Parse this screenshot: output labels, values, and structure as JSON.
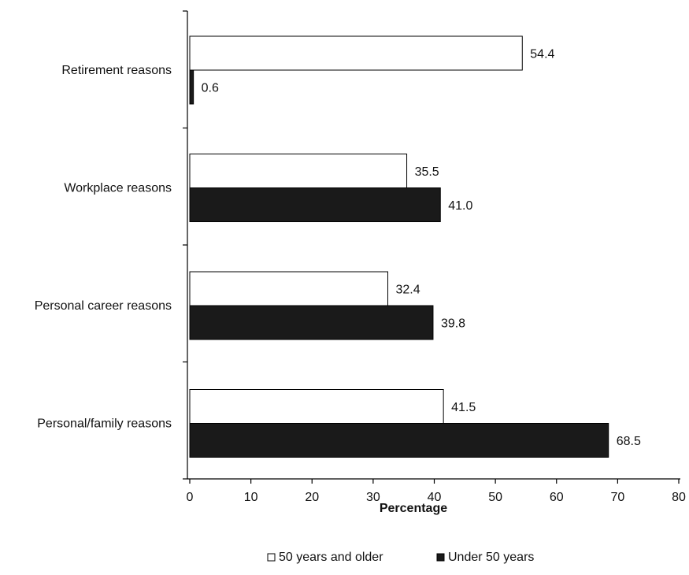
{
  "chart_data": {
    "type": "bar",
    "orientation": "horizontal",
    "categories": [
      "Retirement reasons",
      "Workplace reasons",
      "Personal career reasons",
      "Personal/family reasons"
    ],
    "series": [
      {
        "name": "50 years and older",
        "values": [
          54.4,
          35.5,
          32.4,
          41.5
        ],
        "color": "#ffffff"
      },
      {
        "name": "Under 50 years",
        "values": [
          0.6,
          41.0,
          39.8,
          68.5
        ],
        "color": "#1a1a1a"
      }
    ],
    "data_labels": [
      [
        "54.4",
        "35.5",
        "32.4",
        "41.5"
      ],
      [
        "0.6",
        "41.0",
        "39.8",
        "68.5"
      ]
    ],
    "xlabel": "Percentage",
    "ylabel": "",
    "title": "",
    "xlim": [
      0,
      80
    ],
    "xticks": [
      0,
      10,
      20,
      30,
      40,
      50,
      60,
      70,
      80
    ],
    "grid": false,
    "legend_position": "bottom"
  }
}
